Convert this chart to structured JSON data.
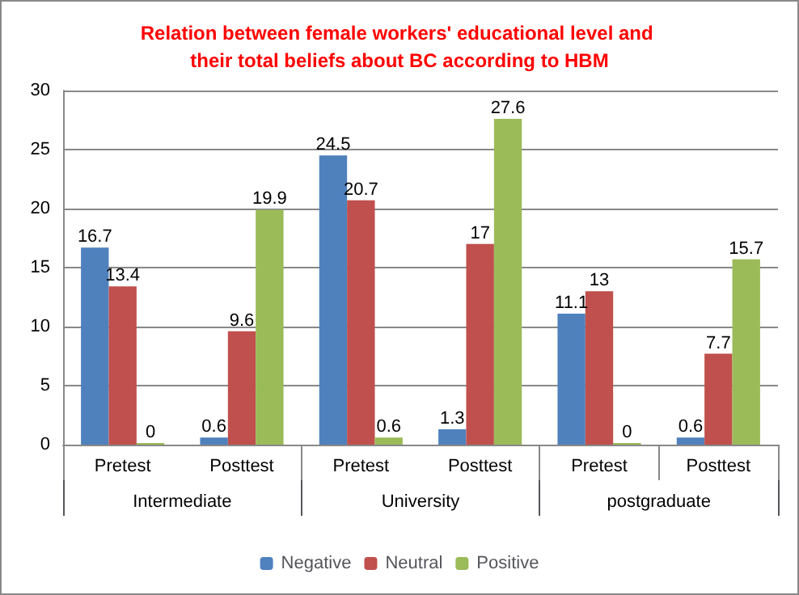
{
  "chart_data": {
    "type": "bar",
    "title": "Relation between female workers' educational level and their total beliefs about BC according to HBM",
    "categories": [
      "Pretest",
      "Posttest",
      "Pretest",
      "Posttest",
      "Pretest",
      "Posttest"
    ],
    "annotations": [
      "Intermediate",
      "University",
      "postgraduate"
    ],
    "series": [
      {
        "name": "Negative",
        "color": "#4f81bd",
        "values": [
          16.7,
          0.6,
          24.5,
          1.3,
          11.1,
          0.6
        ]
      },
      {
        "name": "Neutral",
        "color": "#c0504d",
        "values": [
          13.4,
          9.6,
          20.7,
          17,
          13,
          7.7
        ]
      },
      {
        "name": "Positive",
        "color": "#9bbb59",
        "values": [
          0,
          19.9,
          0.6,
          27.6,
          0,
          15.7
        ]
      }
    ],
    "ylim": [
      0,
      30
    ],
    "yticks": [
      0,
      5,
      10,
      15,
      20,
      25,
      30
    ],
    "grid": "y",
    "legend": "bottom",
    "data_labels": true
  }
}
